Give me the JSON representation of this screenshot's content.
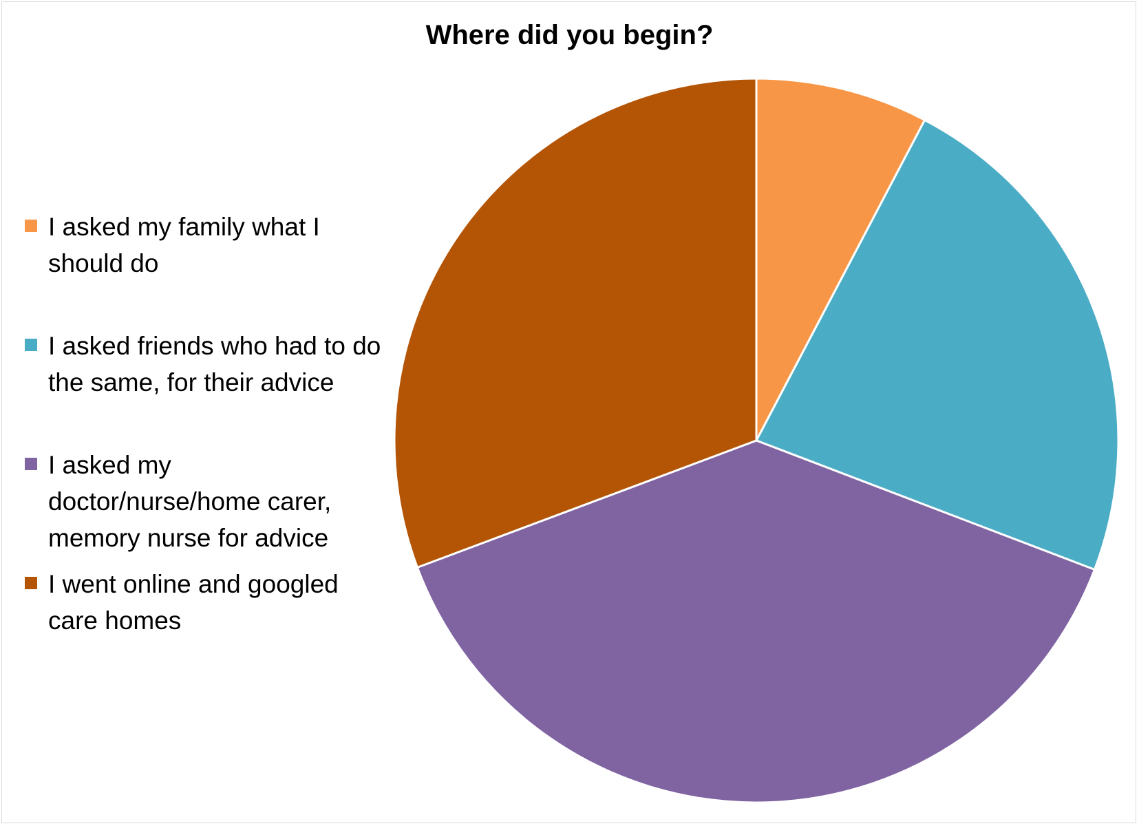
{
  "chart_data": {
    "type": "pie",
    "title": "Where did you begin?",
    "legend_position": "left",
    "start_angle": "12 o'clock, clockwise",
    "slices": [
      {
        "label": "I asked my family what I should do",
        "value": 7.7,
        "color": "#F79646"
      },
      {
        "label": "I asked friends who had to do the same, for their advice",
        "value": 23.1,
        "color": "#4BACC6"
      },
      {
        "label": "I asked my doctor/nurse/home carer, memory nurse for advice",
        "value": 38.5,
        "color": "#8064A2"
      },
      {
        "label": "I went online and googled care homes",
        "value": 30.7,
        "color": "#B45506"
      }
    ]
  }
}
